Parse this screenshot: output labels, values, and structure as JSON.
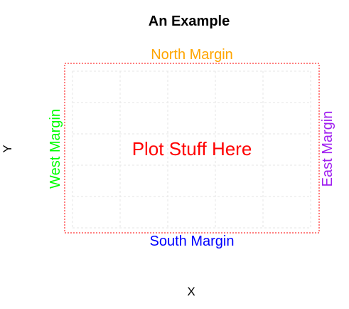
{
  "chart_data": {
    "type": "scatter",
    "title": "An Example",
    "xlabel": "X",
    "ylabel": "Y",
    "grid": true,
    "series": [],
    "annotations": {
      "center": "Plot Stuff Here",
      "north": "North Margin",
      "south": "South Margin",
      "west": "West Margin",
      "east": "East Margin"
    },
    "colors": {
      "title": "#000000",
      "axis_label": "#000000",
      "center": "#ff0000",
      "north": "#ffa500",
      "south": "#0000ff",
      "west": "#00ff00",
      "east": "#a020f0",
      "border": "#ff0000",
      "grid": "#e5e5e5"
    }
  }
}
